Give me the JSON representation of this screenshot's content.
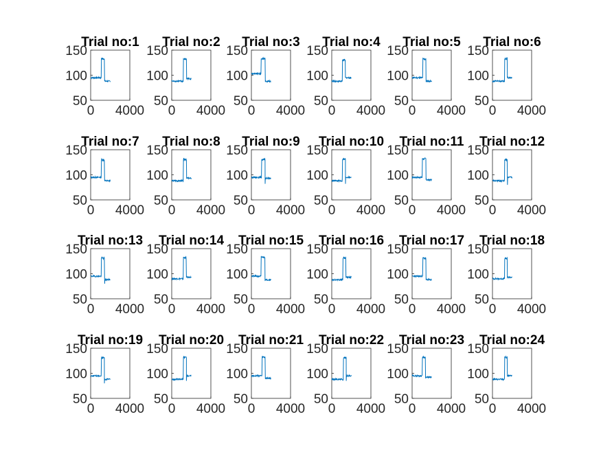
{
  "colors": {
    "line": "#0072BD",
    "axes": "#262626",
    "background": "#ffffff"
  },
  "chart_data": {
    "type": "line",
    "grid": false,
    "layout": {
      "rows": 4,
      "cols": 6
    },
    "xlim": [
      0,
      4000
    ],
    "ylim": [
      50,
      150
    ],
    "xticks": [
      "0",
      "4000"
    ],
    "yticks": [
      "50",
      "100",
      "150"
    ],
    "subplots": [
      {
        "title": "Trial no:1",
        "baseline_before": 95,
        "baseline_after": 88,
        "pulse_start": 1080,
        "pulse_end": 1400,
        "pulse_level": 133,
        "spike": 0
      },
      {
        "title": "Trial no:2",
        "baseline_before": 88,
        "baseline_after": 93,
        "pulse_start": 1200,
        "pulse_end": 1500,
        "pulse_level": 132,
        "spike": 0
      },
      {
        "title": "Trial no:3",
        "baseline_before": 103,
        "baseline_after": 88,
        "pulse_start": 1000,
        "pulse_end": 1400,
        "pulse_level": 133,
        "spike": 0
      },
      {
        "title": "Trial no:4",
        "baseline_before": 88,
        "baseline_after": 95,
        "pulse_start": 1080,
        "pulse_end": 1380,
        "pulse_level": 130,
        "spike": 0
      },
      {
        "title": "Trial no:5",
        "baseline_before": 95,
        "baseline_after": 88,
        "pulse_start": 1100,
        "pulse_end": 1400,
        "pulse_level": 132,
        "spike": 0
      },
      {
        "title": "Trial no:6",
        "baseline_before": 88,
        "baseline_after": 95,
        "pulse_start": 1250,
        "pulse_end": 1520,
        "pulse_level": 133,
        "spike": 0
      },
      {
        "title": "Trial no:7",
        "baseline_before": 95,
        "baseline_after": 88,
        "pulse_start": 1080,
        "pulse_end": 1400,
        "pulse_level": 130,
        "spike": 0
      },
      {
        "title": "Trial no:8",
        "baseline_before": 88,
        "baseline_after": 93,
        "pulse_start": 1200,
        "pulse_end": 1500,
        "pulse_level": 131,
        "spike": 0
      },
      {
        "title": "Trial no:9",
        "baseline_before": 95,
        "baseline_after": 93,
        "pulse_start": 1050,
        "pulse_end": 1400,
        "pulse_level": 130,
        "spike": 82
      },
      {
        "title": "Trial no:10",
        "baseline_before": 88,
        "baseline_after": 95,
        "pulse_start": 1100,
        "pulse_end": 1400,
        "pulse_level": 131,
        "spike": 82
      },
      {
        "title": "Trial no:11",
        "baseline_before": 95,
        "baseline_after": 90,
        "pulse_start": 1050,
        "pulse_end": 1400,
        "pulse_level": 132,
        "spike": 0
      },
      {
        "title": "Trial no:12",
        "baseline_before": 88,
        "baseline_after": 95,
        "pulse_start": 1250,
        "pulse_end": 1520,
        "pulse_level": 130,
        "spike": 80
      },
      {
        "title": "Trial no:13",
        "baseline_before": 95,
        "baseline_after": 88,
        "pulse_start": 1080,
        "pulse_end": 1420,
        "pulse_level": 131,
        "spike": 80
      },
      {
        "title": "Trial no:14",
        "baseline_before": 90,
        "baseline_after": 93,
        "pulse_start": 1180,
        "pulse_end": 1480,
        "pulse_level": 132,
        "spike": 0
      },
      {
        "title": "Trial no:15",
        "baseline_before": 95,
        "baseline_after": 88,
        "pulse_start": 1000,
        "pulse_end": 1380,
        "pulse_level": 133,
        "spike": 0
      },
      {
        "title": "Trial no:16",
        "baseline_before": 88,
        "baseline_after": 93,
        "pulse_start": 1150,
        "pulse_end": 1430,
        "pulse_level": 132,
        "spike": 0
      },
      {
        "title": "Trial no:17",
        "baseline_before": 95,
        "baseline_after": 88,
        "pulse_start": 1100,
        "pulse_end": 1400,
        "pulse_level": 131,
        "spike": 0
      },
      {
        "title": "Trial no:18",
        "baseline_before": 90,
        "baseline_after": 93,
        "pulse_start": 1250,
        "pulse_end": 1520,
        "pulse_level": 130,
        "spike": 0
      },
      {
        "title": "Trial no:19",
        "baseline_before": 95,
        "baseline_after": 88,
        "pulse_start": 1080,
        "pulse_end": 1400,
        "pulse_level": 131,
        "spike": 80
      },
      {
        "title": "Trial no:20",
        "baseline_before": 88,
        "baseline_after": 95,
        "pulse_start": 1200,
        "pulse_end": 1500,
        "pulse_level": 132,
        "spike": 85
      },
      {
        "title": "Trial no:21",
        "baseline_before": 95,
        "baseline_after": 90,
        "pulse_start": 1100,
        "pulse_end": 1400,
        "pulse_level": 132,
        "spike": 0
      },
      {
        "title": "Trial no:22",
        "baseline_before": 88,
        "baseline_after": 95,
        "pulse_start": 1200,
        "pulse_end": 1480,
        "pulse_level": 131,
        "spike": 85
      },
      {
        "title": "Trial no:23",
        "baseline_before": 95,
        "baseline_after": 92,
        "pulse_start": 1050,
        "pulse_end": 1350,
        "pulse_level": 132,
        "spike": 0
      },
      {
        "title": "Trial no:24",
        "baseline_before": 88,
        "baseline_after": 95,
        "pulse_start": 1250,
        "pulse_end": 1520,
        "pulse_level": 132,
        "spike": 0
      }
    ]
  }
}
